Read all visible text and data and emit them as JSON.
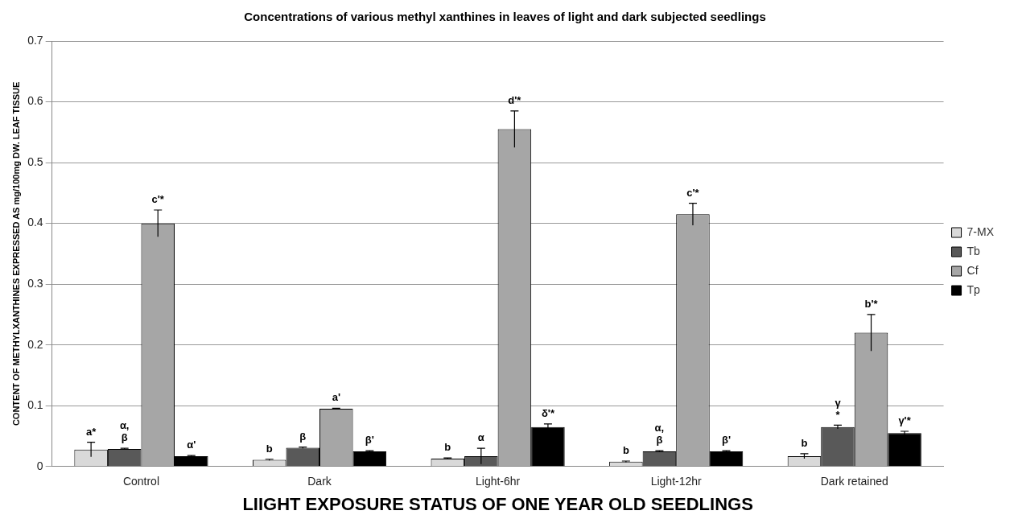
{
  "chart_data": {
    "type": "bar",
    "title": "Concentrations of various methyl xanthines in leaves of light and dark subjected seedlings",
    "xlabel": "LIIGHT EXPOSURE STATUS OF ONE YEAR OLD SEEDLINGS",
    "ylabel": "CONTENT OF METHYLXANTHINES EXPRESSED AS mg/100mg DW. LEAF TISSUE",
    "categories": [
      "Control",
      "Dark",
      "Light-6hr",
      "Light-12hr",
      "Dark retained"
    ],
    "series": [
      {
        "name": "7-MX",
        "color": "#d9d9d9",
        "values": [
          0.028,
          0.011,
          0.013,
          0.008,
          0.017
        ],
        "errors": [
          0.012,
          0.001,
          0.001,
          0.001,
          0.004
        ],
        "value_labels": [
          "a*",
          "b",
          "b",
          "b",
          "b"
        ]
      },
      {
        "name": "Tb",
        "color": "#595959",
        "values": [
          0.029,
          0.031,
          0.017,
          0.025,
          0.065
        ],
        "errors": [
          0.001,
          0.001,
          0.013,
          0.001,
          0.003
        ],
        "value_labels": [
          "α,\nβ",
          "β",
          "α",
          "α,\nβ",
          "γ\n*"
        ]
      },
      {
        "name": "Cf",
        "color": "#a6a6a6",
        "values": [
          0.4,
          0.095,
          0.555,
          0.415,
          0.22
        ],
        "errors": [
          0.022,
          0.001,
          0.03,
          0.018,
          0.03
        ],
        "value_labels": [
          "c'*",
          "a'",
          "d'*",
          "c'*",
          "b'*"
        ]
      },
      {
        "name": "Tp",
        "color": "#000000",
        "values": [
          0.017,
          0.025,
          0.065,
          0.025,
          0.055
        ],
        "errors": [
          0.001,
          0.001,
          0.005,
          0.001,
          0.003
        ],
        "value_labels": [
          "α'",
          "β'",
          "δ'*",
          "β'",
          "γ'*"
        ]
      }
    ],
    "ylim": [
      0,
      0.7
    ],
    "yticks": [
      0,
      0.1,
      0.2,
      0.3,
      0.4,
      0.5,
      0.6,
      0.7
    ],
    "grid": "y",
    "legend": "right"
  }
}
